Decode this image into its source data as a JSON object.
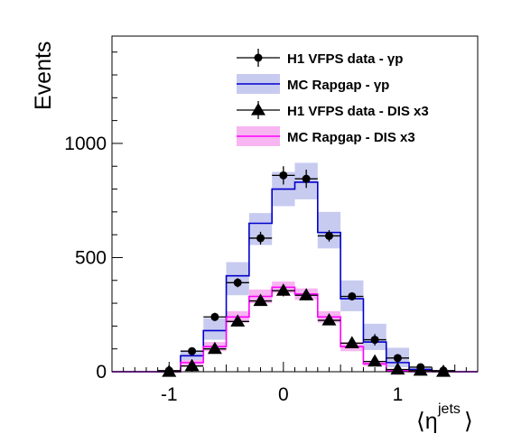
{
  "chart_data": {
    "type": "histogram",
    "title": "",
    "xlabel": "⟨η^jets⟩",
    "xlabel_main": "⟨η",
    "xlabel_sup": "jets",
    "xlabel_close": "⟩",
    "ylabel": "Events",
    "xlim": [
      -1.5,
      1.7
    ],
    "ylim": [
      0,
      1470
    ],
    "x_ticks": [
      -1,
      0,
      1
    ],
    "x_tick_labels": [
      "-1",
      "0",
      "1"
    ],
    "y_ticks": [
      0,
      500,
      1000
    ],
    "y_tick_labels": [
      "0",
      "500",
      "1000"
    ],
    "grid": false,
    "legend_position": "top-right",
    "bin_edges": [
      -1.5,
      -1.3,
      -1.1,
      -0.9,
      -0.7,
      -0.5,
      -0.3,
      -0.1,
      0.1,
      0.3,
      0.5,
      0.7,
      0.9,
      1.1,
      1.3,
      1.5,
      1.7
    ],
    "series": [
      {
        "name": "H1 VFPS data - γp",
        "kind": "data",
        "marker": "circle",
        "color": "#000000",
        "x": [
          -1.0,
          -0.8,
          -0.6,
          -0.4,
          -0.2,
          0.0,
          0.2,
          0.4,
          0.6,
          0.8,
          1.0,
          1.2,
          1.4
        ],
        "values": [
          5,
          90,
          240,
          390,
          585,
          860,
          845,
          595,
          330,
          140,
          60,
          20,
          5
        ],
        "errors": [
          4,
          12,
          18,
          20,
          28,
          40,
          40,
          25,
          18,
          25,
          10,
          6,
          3
        ]
      },
      {
        "name": "MC Rapgap - γp",
        "kind": "mc",
        "color": "#0000cc",
        "band_color": "#c8cbf0",
        "values": [
          0,
          0,
          0,
          70,
          180,
          420,
          650,
          800,
          830,
          610,
          320,
          130,
          40,
          10,
          2,
          0
        ],
        "band_low": [
          0,
          0,
          0,
          45,
          140,
          335,
          555,
          725,
          755,
          540,
          265,
          95,
          20,
          4,
          0,
          0
        ],
        "band_high": [
          0,
          0,
          0,
          95,
          235,
          480,
          695,
          875,
          915,
          700,
          400,
          210,
          105,
          15,
          5,
          0
        ]
      },
      {
        "name": "H1 VFPS data - DIS x3",
        "kind": "data",
        "marker": "triangle",
        "color": "#000000",
        "x": [
          -1.0,
          -0.8,
          -0.6,
          -0.4,
          -0.2,
          0.0,
          0.2,
          0.4,
          0.6,
          0.8,
          1.0,
          1.2,
          1.4
        ],
        "values": [
          0,
          25,
          100,
          220,
          310,
          355,
          335,
          225,
          125,
          45,
          10,
          5,
          0
        ],
        "errors": [
          0,
          5,
          10,
          15,
          20,
          25,
          22,
          15,
          10,
          5,
          3,
          2,
          0
        ]
      },
      {
        "name": "MC Rapgap - DIS x3",
        "kind": "mc",
        "color": "#ff00ff",
        "band_color": "#f7b5f1",
        "values": [
          0,
          0,
          0,
          40,
          110,
          240,
          330,
          370,
          340,
          240,
          110,
          35,
          5,
          0,
          0,
          0
        ],
        "band_low": [
          0,
          0,
          0,
          28,
          90,
          215,
          300,
          345,
          315,
          215,
          90,
          25,
          2,
          0,
          0,
          0
        ],
        "band_high": [
          0,
          0,
          0,
          52,
          130,
          265,
          360,
          395,
          365,
          265,
          130,
          45,
          8,
          0,
          0,
          0
        ]
      }
    ]
  }
}
